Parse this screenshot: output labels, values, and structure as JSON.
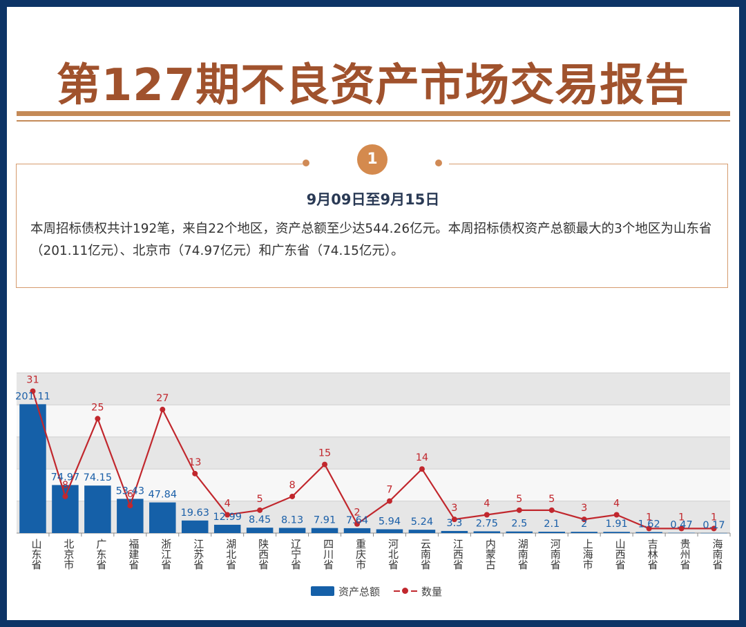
{
  "header": {
    "title": "第127期不良资产市场交易报告"
  },
  "section": {
    "badge": "1",
    "date_range": "9月09日至9月15日",
    "summary": "本周招标债权共计192笔，来自22个地区，资产总额至少达544.26亿元。本周招标债权资产总额最大的3个地区为山东省（201.11亿元）、北京市（74.97亿元）和广东省（74.15亿元）。"
  },
  "colors": {
    "bar": "#1560a8",
    "line": "#c1272d",
    "title": "#a0522d",
    "accent": "#d48a4e"
  },
  "chart_data": {
    "type": "bar",
    "categories": [
      "山东省",
      "北京市",
      "广东省",
      "福建省",
      "浙江省",
      "江苏省",
      "湖北省",
      "陕西省",
      "辽宁省",
      "四川省",
      "重庆市",
      "河北省",
      "云南省",
      "江西省",
      "内蒙古",
      "湖南省",
      "河南省",
      "上海市",
      "山西省",
      "吉林省",
      "贵州省",
      "海南省"
    ],
    "series": [
      {
        "name": "资产总额",
        "type": "bar",
        "values": [
          201.11,
          74.97,
          74.15,
          53.43,
          47.84,
          19.63,
          12.99,
          8.45,
          8.13,
          7.91,
          7.64,
          5.94,
          5.24,
          3.3,
          2.75,
          2.5,
          2.1,
          2,
          1.91,
          1.62,
          0.47,
          0.17
        ],
        "labels": [
          "201.11",
          "74.97",
          "74.15",
          "53.43",
          "47.84",
          "19.63",
          "12.99",
          "8.45",
          "8.13",
          "7.91",
          "7.64",
          "5.94",
          "5.24",
          "3.3",
          "2.75",
          "2.5",
          "2.1",
          "2",
          "1.91",
          "1.62",
          "0.47",
          "0.17"
        ]
      },
      {
        "name": "数量",
        "type": "line",
        "values": [
          31,
          8,
          25,
          6,
          27,
          13,
          4,
          5,
          8,
          15,
          2,
          7,
          14,
          3,
          4,
          5,
          5,
          3,
          4,
          1,
          1,
          1
        ],
        "labels": [
          "31",
          "8",
          "25",
          "6",
          "27",
          "13",
          "4",
          "5",
          "8",
          "15",
          "2",
          "7",
          "14",
          "3",
          "4",
          "5",
          "5",
          "3",
          "4",
          "1",
          "1",
          "1"
        ]
      }
    ],
    "legend": [
      "资产总额",
      "数量"
    ],
    "legend_position": "bottom",
    "grid": true,
    "ylim_bar": [
      0,
      250
    ],
    "ylim_line": [
      0,
      35
    ]
  }
}
